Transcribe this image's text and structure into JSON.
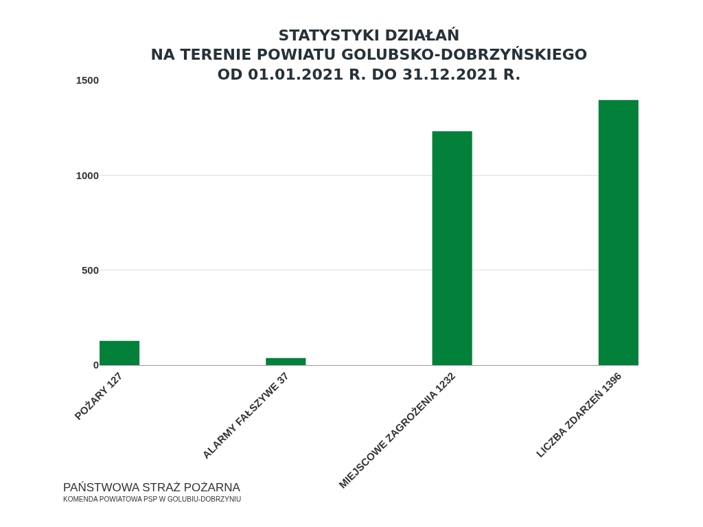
{
  "chart_data": {
    "type": "bar",
    "title": "STATYSTYKI DZIAŁAŃ\nNA TERENIE POWIATU GOLUBSKO-DOBRZYŃSKIEGO\nOD 01.01.2021 R. DO 31.12.2021 R.",
    "categories": [
      "POŻARY 127",
      "ALARMY FAŁSZYWE 37",
      "MIEJSCOWE ZAGROŻENIA 1232",
      "LICZBA ZDARZEŃ 1396"
    ],
    "values": [
      127,
      37,
      1232,
      1396
    ],
    "color": "#03803a",
    "ylim": [
      0,
      1500
    ],
    "yticks": [
      0,
      500,
      1000,
      1500
    ],
    "grid": "y",
    "annotations": [
      "PAŃSTWOWA STRAŻ POŻARNA",
      "KOMENDA POWIATOWA PSP W GOLUBIU-DOBRZYNIU"
    ]
  }
}
